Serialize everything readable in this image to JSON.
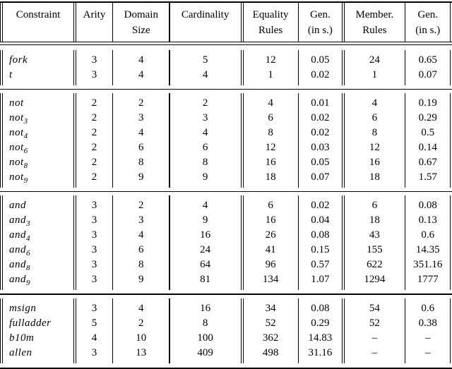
{
  "colors": {
    "ink": "#000000",
    "background": "#ffffff"
  },
  "header": {
    "columns": [
      {
        "lines": [
          "Constraint"
        ]
      },
      {
        "lines": [
          "Arity"
        ]
      },
      {
        "lines": [
          "Domain",
          "Size"
        ]
      },
      {
        "lines": [
          "Cardinality"
        ]
      },
      {
        "lines": [
          "Equality",
          "Rules"
        ]
      },
      {
        "lines": [
          "Gen.",
          "(in s.)"
        ]
      },
      {
        "lines": [
          "Member.",
          "Rules"
        ]
      },
      {
        "lines": [
          "Gen.",
          "(in s.)"
        ]
      }
    ]
  },
  "sections": [
    {
      "rows": [
        {
          "base": "fork",
          "sub": "",
          "values": [
            "3",
            "4",
            "5",
            "12",
            "0.05",
            "24",
            "0.65"
          ]
        },
        {
          "base": "t",
          "sub": "",
          "values": [
            "3",
            "4",
            "4",
            "1",
            "0.02",
            "1",
            "0.07"
          ]
        }
      ]
    },
    {
      "rows": [
        {
          "base": "not",
          "sub": "",
          "values": [
            "2",
            "2",
            "2",
            "4",
            "0.01",
            "4",
            "0.19"
          ]
        },
        {
          "base": "not",
          "sub": "3",
          "values": [
            "2",
            "3",
            "3",
            "6",
            "0.02",
            "6",
            "0.29"
          ]
        },
        {
          "base": "not",
          "sub": "4",
          "values": [
            "2",
            "4",
            "4",
            "8",
            "0.02",
            "8",
            "0.5"
          ]
        },
        {
          "base": "not",
          "sub": "6",
          "values": [
            "2",
            "6",
            "6",
            "12",
            "0.03",
            "12",
            "0.14"
          ]
        },
        {
          "base": "not",
          "sub": "8",
          "values": [
            "2",
            "8",
            "8",
            "16",
            "0.05",
            "16",
            "0.67"
          ]
        },
        {
          "base": "not",
          "sub": "9",
          "values": [
            "2",
            "9",
            "9",
            "18",
            "0.07",
            "18",
            "1.57"
          ]
        }
      ]
    },
    {
      "rows": [
        {
          "base": "and",
          "sub": "",
          "values": [
            "3",
            "2",
            "4",
            "6",
            "0.02",
            "6",
            "0.08"
          ]
        },
        {
          "base": "and",
          "sub": "3",
          "values": [
            "3",
            "3",
            "9",
            "16",
            "0.04",
            "18",
            "0.13"
          ]
        },
        {
          "base": "and",
          "sub": "4",
          "values": [
            "3",
            "4",
            "16",
            "26",
            "0.08",
            "43",
            "0.6"
          ]
        },
        {
          "base": "and",
          "sub": "6",
          "values": [
            "3",
            "6",
            "24",
            "41",
            "0.15",
            "155",
            "14.35"
          ]
        },
        {
          "base": "and",
          "sub": "8",
          "values": [
            "3",
            "8",
            "64",
            "96",
            "0.57",
            "622",
            "351.16"
          ]
        },
        {
          "base": "and",
          "sub": "9",
          "values": [
            "3",
            "9",
            "81",
            "134",
            "1.07",
            "1294",
            "1777"
          ]
        }
      ]
    },
    {
      "rows": [
        {
          "base": "msign",
          "sub": "",
          "values": [
            "3",
            "4",
            "16",
            "34",
            "0.08",
            "54",
            "0.6"
          ]
        },
        {
          "base": "fulladder",
          "sub": "",
          "values": [
            "5",
            "2",
            "8",
            "52",
            "0.29",
            "52",
            "0.38"
          ]
        },
        {
          "base": "b10m",
          "sub": "",
          "values": [
            "4",
            "10",
            "100",
            "362",
            "14.83",
            "–",
            "–"
          ]
        },
        {
          "base": "allen",
          "sub": "",
          "values": [
            "3",
            "13",
            "409",
            "498",
            "31.16",
            "–",
            "–"
          ]
        }
      ]
    }
  ]
}
